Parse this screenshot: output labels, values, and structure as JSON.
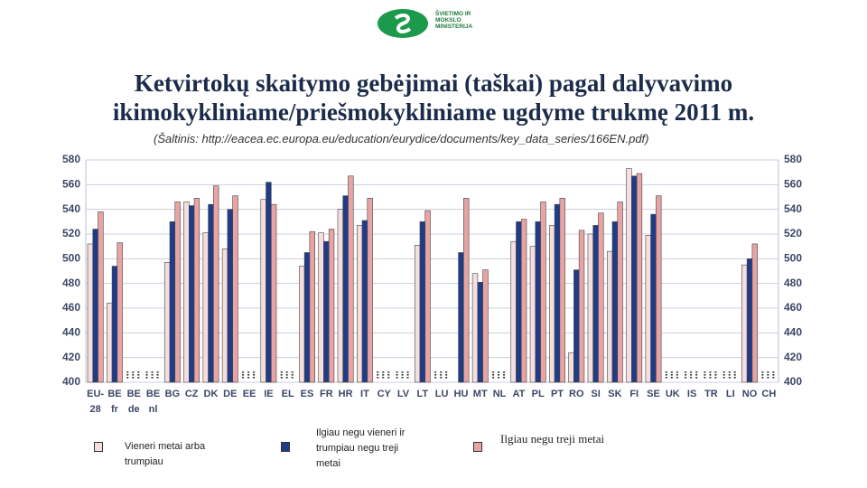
{
  "logo": "ŠVIETIMO IR MOKSLO MINISTERIJA",
  "chart_data": {
    "type": "bar",
    "title": "Ketvirtokų skaitymo gebėjimai (taškai) pagal dalyvavimo ikimokykliniame/priešmokykliniame ugdyme trukmę 2011 m.",
    "subtitle": "(Šaltinis: http://eacea.ec.europa.eu/education/eurydice/documents/key_data_series/166EN.pdf)",
    "categories": [
      "EU-28",
      "BE fr",
      "BE de",
      "BE nl",
      "BG",
      "CZ",
      "DK",
      "DE",
      "EE",
      "IE",
      "EL",
      "ES",
      "FR",
      "HR",
      "IT",
      "CY",
      "LV",
      "LT",
      "LU",
      "HU",
      "MT",
      "NL",
      "AT",
      "PL",
      "PT",
      "RO",
      "SI",
      "SK",
      "FI",
      "SE",
      "UK",
      "IS",
      "TR",
      "LI",
      "NO",
      "CH"
    ],
    "series": [
      {
        "name": "Vieneri metai arba trumpiau",
        "color": "#f6dede",
        "values": [
          512,
          464,
          null,
          null,
          497,
          546,
          521,
          508,
          null,
          548,
          null,
          494,
          521,
          540,
          527,
          null,
          null,
          511,
          null,
          null,
          488,
          null,
          514,
          510,
          527,
          424,
          520,
          506,
          573,
          519,
          null,
          null,
          null,
          null,
          495,
          null
        ]
      },
      {
        "name": "Ilgiau negu vieneri ir trumpiau negu treji metai",
        "color": "#1f3c88",
        "values": [
          524,
          494,
          null,
          null,
          530,
          543,
          544,
          540,
          null,
          562,
          null,
          505,
          514,
          551,
          531,
          null,
          null,
          530,
          null,
          505,
          481,
          null,
          530,
          530,
          544,
          491,
          527,
          530,
          567,
          536,
          null,
          null,
          null,
          null,
          500,
          null
        ]
      },
      {
        "name": "Ilgiau negu treji metai",
        "color": "#e8a4a4",
        "values": [
          538,
          513,
          null,
          null,
          546,
          549,
          559,
          551,
          null,
          544,
          null,
          522,
          524,
          567,
          549,
          null,
          null,
          539,
          null,
          549,
          491,
          null,
          532,
          546,
          549,
          523,
          537,
          546,
          569,
          551,
          null,
          null,
          null,
          null,
          512,
          null
        ]
      }
    ],
    "ylim": [
      400,
      580
    ],
    "yticks": [
      400,
      420,
      440,
      460,
      480,
      500,
      520,
      540,
      560,
      580
    ],
    "grid": true
  }
}
